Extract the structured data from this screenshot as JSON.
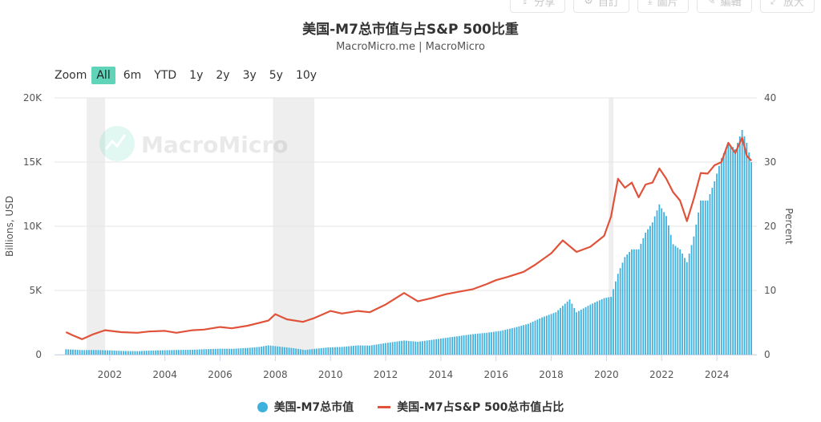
{
  "toolbar": {
    "items": [
      {
        "label": "分享",
        "icon": "share-icon"
      },
      {
        "label": "自訂",
        "icon": "gear-icon"
      },
      {
        "label": "圖片",
        "icon": "download-icon"
      },
      {
        "label": "編輯",
        "icon": "pencil-icon"
      },
      {
        "label": "放大",
        "icon": "expand-icon"
      }
    ]
  },
  "header": {
    "title": "美国-M7总市值与占S&P 500比重",
    "subtitle": "MacroMicro.me | MacroMicro"
  },
  "zoom": {
    "label": "Zoom",
    "options": [
      "All",
      "6m",
      "YTD",
      "1y",
      "2y",
      "3y",
      "5y",
      "10y"
    ],
    "active": "All"
  },
  "watermark": "MacroMicro",
  "colors": {
    "bar": "#3eb0dd",
    "line": "#e0533a",
    "recession_band": "#eeeeee",
    "active_zoom": "#5fd4b9"
  },
  "legend": [
    {
      "label": "美国-M7总市值",
      "marker": "dot"
    },
    {
      "label": "美国-M7占S&P 500总市值占比",
      "marker": "line"
    }
  ],
  "chart_data": {
    "type": "bar+line",
    "x_type": "date",
    "x_ticks": [
      "2002",
      "2004",
      "2006",
      "2008",
      "2010",
      "2012",
      "2014",
      "2016",
      "2018",
      "2020",
      "2022",
      "2024"
    ],
    "y_left": {
      "label": "Billions, USD",
      "ticks": [
        "0",
        "5K",
        "10K",
        "15K",
        "20K"
      ],
      "range": [
        0,
        20000
      ]
    },
    "y_right": {
      "label": "Percent",
      "ticks": [
        "0",
        "10",
        "20",
        "30",
        "40"
      ],
      "range": [
        0,
        40
      ]
    },
    "grid": "horizontal",
    "legend_position": "bottom-center",
    "recession_bands": [
      [
        "2001-03",
        "2001-11"
      ],
      [
        "2007-12",
        "2009-06"
      ],
      [
        "2020-02",
        "2020-04"
      ]
    ],
    "series": [
      {
        "name": "美国-M7总市值",
        "type": "bar",
        "axis": "left",
        "points": [
          [
            "2000-06",
            420
          ],
          [
            "2001-01",
            350
          ],
          [
            "2001-06",
            360
          ],
          [
            "2002-01",
            330
          ],
          [
            "2002-06",
            290
          ],
          [
            "2003-01",
            270
          ],
          [
            "2003-06",
            310
          ],
          [
            "2004-01",
            340
          ],
          [
            "2004-06",
            360
          ],
          [
            "2005-01",
            380
          ],
          [
            "2005-06",
            420
          ],
          [
            "2006-01",
            460
          ],
          [
            "2006-06",
            450
          ],
          [
            "2007-01",
            520
          ],
          [
            "2007-06",
            600
          ],
          [
            "2007-10",
            720
          ],
          [
            "2008-03",
            620
          ],
          [
            "2008-09",
            500
          ],
          [
            "2009-02",
            360
          ],
          [
            "2009-06",
            450
          ],
          [
            "2009-12",
            560
          ],
          [
            "2010-06",
            600
          ],
          [
            "2011-01",
            720
          ],
          [
            "2011-06",
            700
          ],
          [
            "2012-01",
            900
          ],
          [
            "2012-09",
            1100
          ],
          [
            "2013-03",
            1000
          ],
          [
            "2013-09",
            1150
          ],
          [
            "2014-03",
            1300
          ],
          [
            "2014-09",
            1450
          ],
          [
            "2015-03",
            1600
          ],
          [
            "2015-09",
            1700
          ],
          [
            "2016-03",
            1850
          ],
          [
            "2016-09",
            2100
          ],
          [
            "2017-03",
            2400
          ],
          [
            "2017-09",
            2900
          ],
          [
            "2018-03",
            3300
          ],
          [
            "2018-09",
            4300
          ],
          [
            "2018-12",
            3300
          ],
          [
            "2019-06",
            3900
          ],
          [
            "2019-12",
            4400
          ],
          [
            "2020-03",
            4500
          ],
          [
            "2020-06",
            6300
          ],
          [
            "2020-09",
            7600
          ],
          [
            "2020-12",
            8200
          ],
          [
            "2021-03",
            8200
          ],
          [
            "2021-06",
            9500
          ],
          [
            "2021-09",
            10300
          ],
          [
            "2021-12",
            11700
          ],
          [
            "2022-03",
            10800
          ],
          [
            "2022-06",
            8600
          ],
          [
            "2022-09",
            8200
          ],
          [
            "2022-12",
            7200
          ],
          [
            "2023-03",
            9200
          ],
          [
            "2023-06",
            12000
          ],
          [
            "2023-09",
            12000
          ],
          [
            "2023-12",
            13500
          ],
          [
            "2024-03",
            15300
          ],
          [
            "2024-06",
            16500
          ],
          [
            "2024-09",
            16000
          ],
          [
            "2024-12",
            17500
          ],
          [
            "2025-02",
            16500
          ],
          [
            "2025-04",
            15000
          ]
        ]
      },
      {
        "name": "美国-M7占S&P 500总市值占比",
        "type": "line",
        "axis": "right",
        "points": [
          [
            "2000-06",
            3.5
          ],
          [
            "2000-09",
            3.0
          ],
          [
            "2001-01",
            2.4
          ],
          [
            "2001-06",
            3.2
          ],
          [
            "2001-11",
            3.8
          ],
          [
            "2002-06",
            3.5
          ],
          [
            "2003-01",
            3.4
          ],
          [
            "2003-06",
            3.6
          ],
          [
            "2004-01",
            3.7
          ],
          [
            "2004-06",
            3.4
          ],
          [
            "2005-01",
            3.8
          ],
          [
            "2005-06",
            3.9
          ],
          [
            "2006-01",
            4.3
          ],
          [
            "2006-06",
            4.1
          ],
          [
            "2007-01",
            4.5
          ],
          [
            "2007-10",
            5.3
          ],
          [
            "2008-01",
            6.3
          ],
          [
            "2008-06",
            5.5
          ],
          [
            "2009-01",
            5.1
          ],
          [
            "2009-06",
            5.7
          ],
          [
            "2010-01",
            6.8
          ],
          [
            "2010-06",
            6.4
          ],
          [
            "2011-01",
            6.8
          ],
          [
            "2011-06",
            6.6
          ],
          [
            "2012-01",
            7.8
          ],
          [
            "2012-09",
            9.6
          ],
          [
            "2013-03",
            8.3
          ],
          [
            "2013-09",
            8.8
          ],
          [
            "2014-03",
            9.4
          ],
          [
            "2014-09",
            9.8
          ],
          [
            "2015-03",
            10.2
          ],
          [
            "2015-09",
            11.0
          ],
          [
            "2016-01",
            11.6
          ],
          [
            "2016-06",
            12.1
          ],
          [
            "2017-01",
            12.9
          ],
          [
            "2017-06",
            14.0
          ],
          [
            "2018-01",
            15.8
          ],
          [
            "2018-06",
            17.8
          ],
          [
            "2018-12",
            16.0
          ],
          [
            "2019-06",
            16.8
          ],
          [
            "2019-12",
            18.5
          ],
          [
            "2020-03",
            21.5
          ],
          [
            "2020-06",
            27.4
          ],
          [
            "2020-09",
            26.0
          ],
          [
            "2020-12",
            26.8
          ],
          [
            "2021-03",
            24.5
          ],
          [
            "2021-06",
            26.5
          ],
          [
            "2021-09",
            26.8
          ],
          [
            "2021-12",
            29.0
          ],
          [
            "2022-03",
            27.4
          ],
          [
            "2022-06",
            25.3
          ],
          [
            "2022-09",
            24.0
          ],
          [
            "2022-12",
            20.8
          ],
          [
            "2023-03",
            24.3
          ],
          [
            "2023-06",
            28.3
          ],
          [
            "2023-09",
            28.2
          ],
          [
            "2023-12",
            29.5
          ],
          [
            "2024-03",
            30.0
          ],
          [
            "2024-06",
            33.0
          ],
          [
            "2024-09",
            31.4
          ],
          [
            "2024-12",
            33.8
          ],
          [
            "2025-02",
            31.0
          ],
          [
            "2025-04",
            30.2
          ]
        ]
      }
    ]
  }
}
